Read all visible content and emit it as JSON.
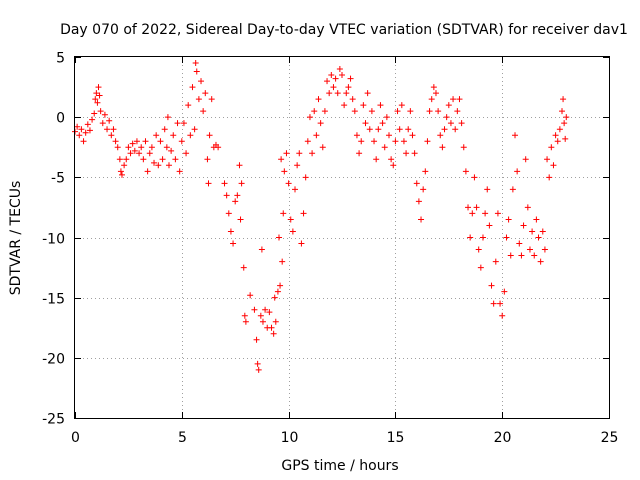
{
  "chart_data": {
    "type": "scatter",
    "title": "Day 070 of 2022, Sidereal Day-to-day VTEC variation (SDTVAR) for receiver dav1",
    "xlabel": "GPS time / hours",
    "ylabel": "SDTVAR / TECUs",
    "xlim": [
      0,
      25
    ],
    "ylim": [
      -25,
      5
    ],
    "xticks": [
      "0",
      "5",
      "10",
      "15",
      "20",
      "25"
    ],
    "yticks": [
      "5",
      "0",
      "-5",
      "-10",
      "-15",
      "-20",
      "-25"
    ],
    "grid": true,
    "marker": "+",
    "color": "#ff0000",
    "series": [
      {
        "name": "SDTVAR",
        "points": [
          [
            0.0,
            -1.2
          ],
          [
            0.1,
            -0.8
          ],
          [
            0.2,
            -1.5
          ],
          [
            0.3,
            -1.0
          ],
          [
            0.4,
            -2.0
          ],
          [
            0.5,
            -1.3
          ],
          [
            0.6,
            -0.6
          ],
          [
            0.7,
            -1.1
          ],
          [
            0.8,
            -0.2
          ],
          [
            0.9,
            0.3
          ],
          [
            0.95,
            1.5
          ],
          [
            1.0,
            2.0
          ],
          [
            1.05,
            1.2
          ],
          [
            1.1,
            2.5
          ],
          [
            1.15,
            1.8
          ],
          [
            1.2,
            0.5
          ],
          [
            1.3,
            -0.5
          ],
          [
            1.4,
            0.2
          ],
          [
            1.5,
            -1.0
          ],
          [
            1.6,
            -0.3
          ],
          [
            1.7,
            -1.5
          ],
          [
            1.8,
            -1.0
          ],
          [
            1.9,
            -2.0
          ],
          [
            2.0,
            -2.5
          ],
          [
            2.1,
            -3.5
          ],
          [
            2.15,
            -4.5
          ],
          [
            2.2,
            -4.8
          ],
          [
            2.3,
            -4.0
          ],
          [
            2.4,
            -3.5
          ],
          [
            2.5,
            -2.5
          ],
          [
            2.6,
            -3.0
          ],
          [
            2.7,
            -2.2
          ],
          [
            2.8,
            -2.8
          ],
          [
            2.9,
            -2.0
          ],
          [
            3.0,
            -3.0
          ],
          [
            3.1,
            -2.5
          ],
          [
            3.2,
            -3.5
          ],
          [
            3.3,
            -2.0
          ],
          [
            3.4,
            -4.5
          ],
          [
            3.5,
            -3.0
          ],
          [
            3.6,
            -2.5
          ],
          [
            3.7,
            -3.8
          ],
          [
            3.8,
            -1.5
          ],
          [
            3.9,
            -4.0
          ],
          [
            4.0,
            -2.0
          ],
          [
            4.1,
            -3.5
          ],
          [
            4.2,
            -1.0
          ],
          [
            4.3,
            -2.5
          ],
          [
            4.35,
            0.0
          ],
          [
            4.4,
            -4.0
          ],
          [
            4.5,
            -2.8
          ],
          [
            4.6,
            -1.5
          ],
          [
            4.7,
            -3.5
          ],
          [
            4.8,
            -0.5
          ],
          [
            4.9,
            -4.5
          ],
          [
            5.0,
            -2.0
          ],
          [
            5.1,
            -0.5
          ],
          [
            5.2,
            -3.0
          ],
          [
            5.3,
            1.0
          ],
          [
            5.4,
            -1.5
          ],
          [
            5.5,
            2.5
          ],
          [
            5.6,
            -1.0
          ],
          [
            5.65,
            4.5
          ],
          [
            5.7,
            3.8
          ],
          [
            5.8,
            1.5
          ],
          [
            5.9,
            3.0
          ],
          [
            6.0,
            0.5
          ],
          [
            6.1,
            2.0
          ],
          [
            6.2,
            -3.5
          ],
          [
            6.25,
            -5.5
          ],
          [
            6.3,
            -1.5
          ],
          [
            6.4,
            1.5
          ],
          [
            6.5,
            -2.5
          ],
          [
            6.6,
            -2.3
          ],
          [
            6.7,
            -2.5
          ],
          [
            7.0,
            -5.5
          ],
          [
            7.1,
            -6.5
          ],
          [
            7.2,
            -8.0
          ],
          [
            7.3,
            -9.5
          ],
          [
            7.4,
            -10.5
          ],
          [
            7.5,
            -7.0
          ],
          [
            7.6,
            -6.5
          ],
          [
            7.7,
            -4.0
          ],
          [
            7.75,
            -8.5
          ],
          [
            7.8,
            -5.5
          ],
          [
            7.9,
            -12.5
          ],
          [
            7.95,
            -16.5
          ],
          [
            8.0,
            -17.0
          ],
          [
            8.2,
            -14.8
          ],
          [
            8.4,
            -16.0
          ],
          [
            8.5,
            -18.5
          ],
          [
            8.55,
            -20.5
          ],
          [
            8.6,
            -21.0
          ],
          [
            8.7,
            -16.5
          ],
          [
            8.75,
            -11.0
          ],
          [
            8.8,
            -17.0
          ],
          [
            8.9,
            -16.0
          ],
          [
            9.0,
            -17.5
          ],
          [
            9.1,
            -16.2
          ],
          [
            9.2,
            -17.5
          ],
          [
            9.3,
            -18.0
          ],
          [
            9.35,
            -15.0
          ],
          [
            9.4,
            -17.0
          ],
          [
            9.5,
            -14.5
          ],
          [
            9.55,
            -10.0
          ],
          [
            9.6,
            -14.0
          ],
          [
            9.65,
            -3.5
          ],
          [
            9.7,
            -12.0
          ],
          [
            9.75,
            -8.0
          ],
          [
            9.8,
            -4.5
          ],
          [
            9.9,
            -3.0
          ],
          [
            10.0,
            -5.5
          ],
          [
            10.1,
            -8.5
          ],
          [
            10.2,
            -9.5
          ],
          [
            10.3,
            -6.0
          ],
          [
            10.4,
            -4.0
          ],
          [
            10.5,
            -3.0
          ],
          [
            10.6,
            -10.5
          ],
          [
            10.7,
            -8.0
          ],
          [
            10.8,
            -5.0
          ],
          [
            10.9,
            -2.0
          ],
          [
            11.0,
            0.0
          ],
          [
            11.1,
            -3.0
          ],
          [
            11.2,
            0.5
          ],
          [
            11.3,
            -1.5
          ],
          [
            11.4,
            1.5
          ],
          [
            11.5,
            -0.5
          ],
          [
            11.6,
            -2.5
          ],
          [
            11.7,
            0.5
          ],
          [
            11.8,
            3.0
          ],
          [
            11.9,
            2.0
          ],
          [
            12.0,
            3.5
          ],
          [
            12.1,
            2.5
          ],
          [
            12.2,
            3.2
          ],
          [
            12.3,
            2.0
          ],
          [
            12.4,
            4.0
          ],
          [
            12.5,
            3.5
          ],
          [
            12.6,
            1.0
          ],
          [
            12.7,
            2.0
          ],
          [
            12.8,
            2.5
          ],
          [
            12.9,
            3.2
          ],
          [
            13.0,
            1.5
          ],
          [
            13.1,
            0.5
          ],
          [
            13.2,
            -1.5
          ],
          [
            13.3,
            -3.0
          ],
          [
            13.4,
            -2.0
          ],
          [
            13.5,
            1.0
          ],
          [
            13.6,
            -0.5
          ],
          [
            13.7,
            2.0
          ],
          [
            13.8,
            -1.0
          ],
          [
            13.9,
            0.5
          ],
          [
            14.0,
            -2.0
          ],
          [
            14.1,
            -3.5
          ],
          [
            14.2,
            -1.0
          ],
          [
            14.3,
            1.0
          ],
          [
            14.4,
            -0.5
          ],
          [
            14.5,
            -2.5
          ],
          [
            14.6,
            0.0
          ],
          [
            14.7,
            -1.5
          ],
          [
            14.8,
            -3.5
          ],
          [
            14.9,
            -4.0
          ],
          [
            15.0,
            -2.0
          ],
          [
            15.1,
            0.5
          ],
          [
            15.2,
            -1.0
          ],
          [
            15.3,
            1.0
          ],
          [
            15.4,
            -2.0
          ],
          [
            15.5,
            -3.0
          ],
          [
            15.6,
            -1.0
          ],
          [
            15.7,
            0.5
          ],
          [
            15.8,
            -1.5
          ],
          [
            15.9,
            -3.0
          ],
          [
            16.0,
            -5.5
          ],
          [
            16.1,
            -7.0
          ],
          [
            16.2,
            -8.5
          ],
          [
            16.3,
            -6.0
          ],
          [
            16.4,
            -4.5
          ],
          [
            16.5,
            -2.0
          ],
          [
            16.6,
            0.5
          ],
          [
            16.7,
            1.5
          ],
          [
            16.8,
            2.5
          ],
          [
            16.9,
            2.0
          ],
          [
            17.0,
            0.5
          ],
          [
            17.1,
            -1.5
          ],
          [
            17.2,
            -2.5
          ],
          [
            17.3,
            -1.0
          ],
          [
            17.4,
            0.0
          ],
          [
            17.5,
            1.0
          ],
          [
            17.6,
            -0.5
          ],
          [
            17.7,
            1.5
          ],
          [
            17.8,
            -1.0
          ],
          [
            17.9,
            0.5
          ],
          [
            18.0,
            1.5
          ],
          [
            18.1,
            -0.5
          ],
          [
            18.2,
            -2.5
          ],
          [
            18.3,
            -4.5
          ],
          [
            18.4,
            -7.5
          ],
          [
            18.5,
            -10.0
          ],
          [
            18.6,
            -8.0
          ],
          [
            18.7,
            -5.0
          ],
          [
            18.8,
            -7.5
          ],
          [
            18.9,
            -11.0
          ],
          [
            19.0,
            -12.5
          ],
          [
            19.1,
            -10.0
          ],
          [
            19.2,
            -8.0
          ],
          [
            19.3,
            -6.0
          ],
          [
            19.4,
            -9.0
          ],
          [
            19.5,
            -14.0
          ],
          [
            19.6,
            -15.5
          ],
          [
            19.7,
            -12.0
          ],
          [
            19.8,
            -8.0
          ],
          [
            19.9,
            -15.5
          ],
          [
            20.0,
            -16.5
          ],
          [
            20.1,
            -14.5
          ],
          [
            20.2,
            -10.0
          ],
          [
            20.3,
            -8.5
          ],
          [
            20.4,
            -11.5
          ],
          [
            20.5,
            -6.0
          ],
          [
            20.6,
            -1.5
          ],
          [
            20.7,
            -4.5
          ],
          [
            20.8,
            -10.5
          ],
          [
            20.9,
            -11.5
          ],
          [
            21.0,
            -9.0
          ],
          [
            21.1,
            -3.5
          ],
          [
            21.2,
            -7.5
          ],
          [
            21.3,
            -11.0
          ],
          [
            21.4,
            -9.5
          ],
          [
            21.5,
            -11.5
          ],
          [
            21.6,
            -8.5
          ],
          [
            21.7,
            -10.0
          ],
          [
            21.8,
            -12.0
          ],
          [
            21.9,
            -9.5
          ],
          [
            22.0,
            -11.0
          ],
          [
            22.1,
            -3.5
          ],
          [
            22.2,
            -5.0
          ],
          [
            22.3,
            -2.5
          ],
          [
            22.4,
            -4.0
          ],
          [
            22.5,
            -1.5
          ],
          [
            22.6,
            -2.0
          ],
          [
            22.7,
            -1.0
          ],
          [
            22.8,
            0.5
          ],
          [
            22.85,
            1.5
          ],
          [
            22.9,
            -0.5
          ],
          [
            22.95,
            -1.8
          ],
          [
            23.0,
            0.0
          ]
        ]
      }
    ]
  }
}
